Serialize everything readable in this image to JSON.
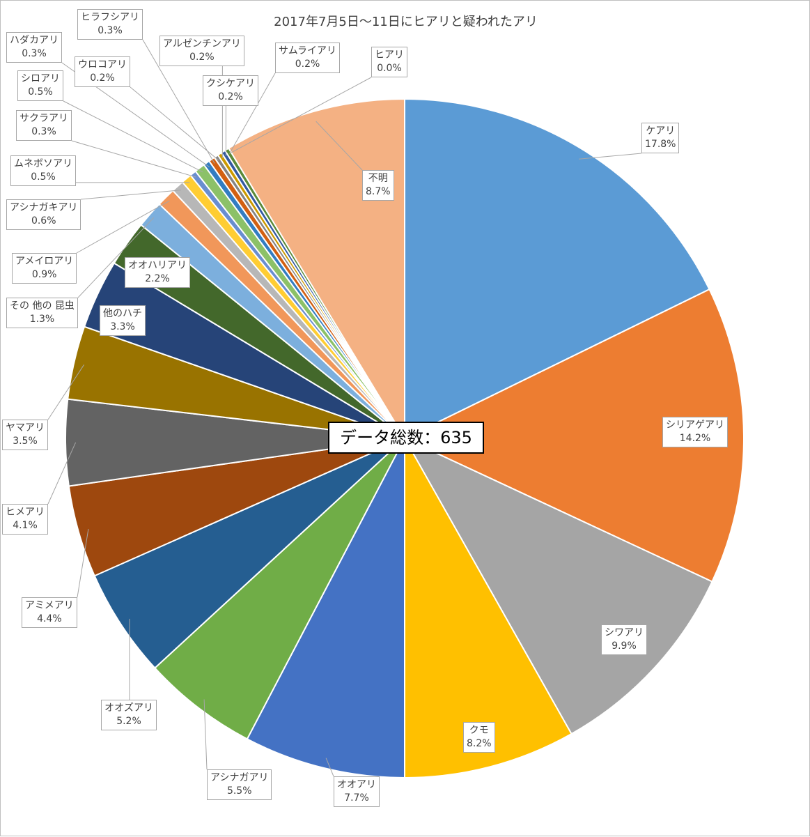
{
  "chart_data": {
    "type": "pie",
    "title": "2017年7月5日～11日にヒアリと疑われたアリ",
    "total_label": "データ総数：635",
    "slices": [
      {
        "name": "ケアリ",
        "value": 17.8,
        "pct": "17.8%",
        "color": "#5b9bd5"
      },
      {
        "name": "シリアゲアリ",
        "value": 14.2,
        "pct": "14.2%",
        "color": "#ed7d31"
      },
      {
        "name": "シワアリ",
        "value": 9.9,
        "pct": "9.9%",
        "color": "#a5a5a5"
      },
      {
        "name": "クモ",
        "value": 8.2,
        "pct": "8.2%",
        "color": "#ffc000"
      },
      {
        "name": "オオアリ",
        "value": 7.7,
        "pct": "7.7%",
        "color": "#4472c4"
      },
      {
        "name": "アシナガアリ",
        "value": 5.5,
        "pct": "5.5%",
        "color": "#70ad47"
      },
      {
        "name": "オオズアリ",
        "value": 5.2,
        "pct": "5.2%",
        "color": "#255e91"
      },
      {
        "name": "アミメアリ",
        "value": 4.4,
        "pct": "4.4%",
        "color": "#9e480e"
      },
      {
        "name": "ヒメアリ",
        "value": 4.1,
        "pct": "4.1%",
        "color": "#636363"
      },
      {
        "name": "ヤマアリ",
        "value": 3.5,
        "pct": "3.5%",
        "color": "#997300"
      },
      {
        "name": "他のハチ",
        "value": 3.3,
        "pct": "3.3%",
        "color": "#264478"
      },
      {
        "name": "オオハリアリ",
        "value": 2.2,
        "pct": "2.2%",
        "color": "#43682b"
      },
      {
        "name": "その 他の 昆虫",
        "value": 1.3,
        "pct": "1.3%",
        "color": "#7cafdd"
      },
      {
        "name": "アメイロアリ",
        "value": 0.9,
        "pct": "0.9%",
        "color": "#f1975a"
      },
      {
        "name": "アシナガキアリ",
        "value": 0.6,
        "pct": "0.6%",
        "color": "#b7b7b7"
      },
      {
        "name": "ムネボソアリ",
        "value": 0.5,
        "pct": "0.5%",
        "color": "#ffcd33"
      },
      {
        "name": "サクラアリ",
        "value": 0.3,
        "pct": "0.3%",
        "color": "#698ed0"
      },
      {
        "name": "シロアリ",
        "value": 0.5,
        "pct": "0.5%",
        "color": "#8cc168"
      },
      {
        "name": "ハダカアリ",
        "value": 0.3,
        "pct": "0.3%",
        "color": "#327dc2"
      },
      {
        "name": "ヒラフシアリ",
        "value": 0.3,
        "pct": "0.3%",
        "color": "#d26012"
      },
      {
        "name": "ウロコアリ",
        "value": 0.2,
        "pct": "0.2%",
        "color": "#848484"
      },
      {
        "name": "アルゼンチンアリ",
        "value": 0.2,
        "pct": "0.2%",
        "color": "#cc9a00"
      },
      {
        "name": "クシケアリ",
        "value": 0.2,
        "pct": "0.2%",
        "color": "#335aa1"
      },
      {
        "name": "サムライアリ",
        "value": 0.2,
        "pct": "0.2%",
        "color": "#5a8a39"
      },
      {
        "name": "ヒアリ",
        "value": 0.0,
        "pct": "0.0%",
        "color": "#a5a5a5"
      },
      {
        "name": "不明",
        "value": 8.7,
        "pct": "8.7%",
        "color": "#f4b183"
      }
    ]
  }
}
